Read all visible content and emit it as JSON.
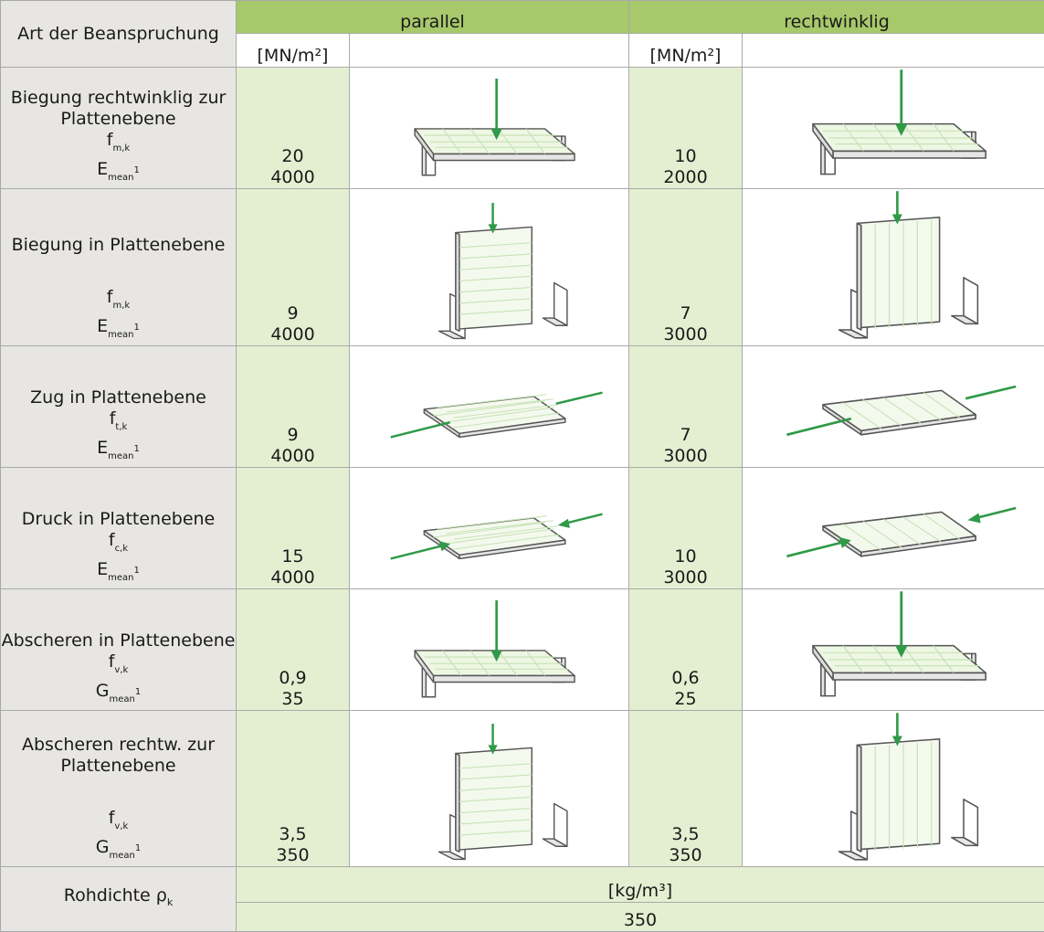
{
  "header": {
    "title": "Art der Beanspruchung",
    "col_parallel": "parallel",
    "col_rechtwinklig": "rechtwinklig",
    "unit_parallel": "[MN/m²]",
    "unit_rechtwinklig": "[MN/m²]"
  },
  "rows": [
    {
      "name": "Biegung rechtwinklig zur Plattenebene",
      "sym1": "f",
      "sub1": "m,k",
      "sym2": "E",
      "sub2": "mean",
      "sup2": "1",
      "par1": "20",
      "par2": "4000",
      "rw1": "10",
      "rw2": "2000"
    },
    {
      "name": "Biegung in Plattenebene",
      "sym1": "f",
      "sub1": "m,k",
      "sym2": "E",
      "sub2": "mean",
      "sup2": "1",
      "par1": "9",
      "par2": "4000",
      "rw1": "7",
      "rw2": "3000"
    },
    {
      "name": "Zug in Plattenebene",
      "sym1": "f",
      "sub1": "t,k",
      "sym2": "E",
      "sub2": "mean",
      "sup2": "1",
      "par1": "9",
      "par2": "4000",
      "rw1": "7",
      "rw2": "3000"
    },
    {
      "name": "Druck in Plattenebene",
      "sym1": "f",
      "sub1": "c,k",
      "sym2": "E",
      "sub2": "mean",
      "sup2": "1",
      "par1": "15",
      "par2": "4000",
      "rw1": "10",
      "rw2": "3000"
    },
    {
      "name": "Abscheren in Plattenebene",
      "sym1": "f",
      "sub1": "v,k",
      "sym2": "G",
      "sub2": "mean",
      "sup2": "1",
      "par1": "0,9",
      "par2": "35",
      "rw1": "0,6",
      "rw2": "25"
    },
    {
      "name": "Abscheren rechtw. zur Plattenebene",
      "sym1": "f",
      "sub1": "v,k",
      "sym2": "G",
      "sub2": "mean",
      "sup2": "1",
      "par1": "3,5",
      "par2": "350",
      "rw1": "3,5",
      "rw2": "350"
    }
  ],
  "density": {
    "label": "Rohdichte ρ",
    "label_sub": "k",
    "unit": "[kg/m³]",
    "value": "350"
  },
  "colors": {
    "header_green": "#a7c86b",
    "value_green": "#e4efd1",
    "label_grey": "#e7e6e3",
    "arrow_green": "#2f9a47"
  }
}
